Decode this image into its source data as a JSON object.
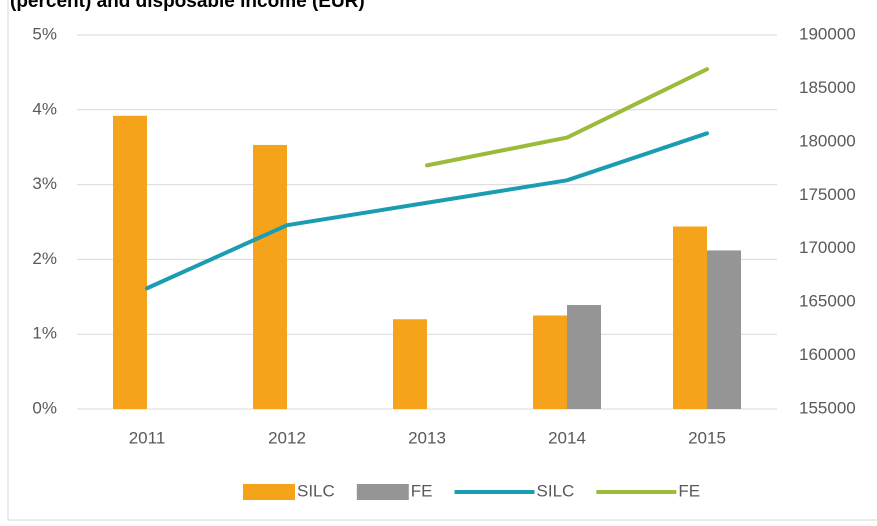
{
  "chart_data": {
    "type": "combo",
    "title": "(percent) and disposable income (EUR)",
    "categories": [
      "2011",
      "2012",
      "2013",
      "2014",
      "2015"
    ],
    "series": [
      {
        "name": "SILC",
        "type": "bar",
        "color": "#f5a31a",
        "values": [
          3.92,
          3.53,
          1.2,
          1.25,
          2.44
        ]
      },
      {
        "name": "FE",
        "type": "bar",
        "color": "#959595",
        "values": [
          null,
          null,
          null,
          1.39,
          2.12
        ]
      },
      {
        "name": "SILC",
        "type": "line",
        "axis": "y2",
        "color": "#1b9db1",
        "values": [
          166300,
          172200,
          174300,
          176400,
          180800
        ]
      },
      {
        "name": "FE",
        "type": "line",
        "axis": "y2",
        "color": "#9bbb3b",
        "values": [
          null,
          null,
          177800,
          180400,
          186800
        ]
      }
    ],
    "ylim": [
      0,
      5
    ],
    "yticks": [
      {
        "value": 0,
        "label": "0%"
      },
      {
        "value": 1,
        "label": "1%"
      },
      {
        "value": 2,
        "label": "2%"
      },
      {
        "value": 3,
        "label": "3%"
      },
      {
        "value": 4,
        "label": "4%"
      },
      {
        "value": 5,
        "label": "5%"
      }
    ],
    "y2lim": [
      155000,
      190000
    ],
    "y2ticks": [
      155000,
      160000,
      165000,
      170000,
      175000,
      180000,
      185000,
      190000
    ],
    "grid": true,
    "legend": "bottom"
  }
}
